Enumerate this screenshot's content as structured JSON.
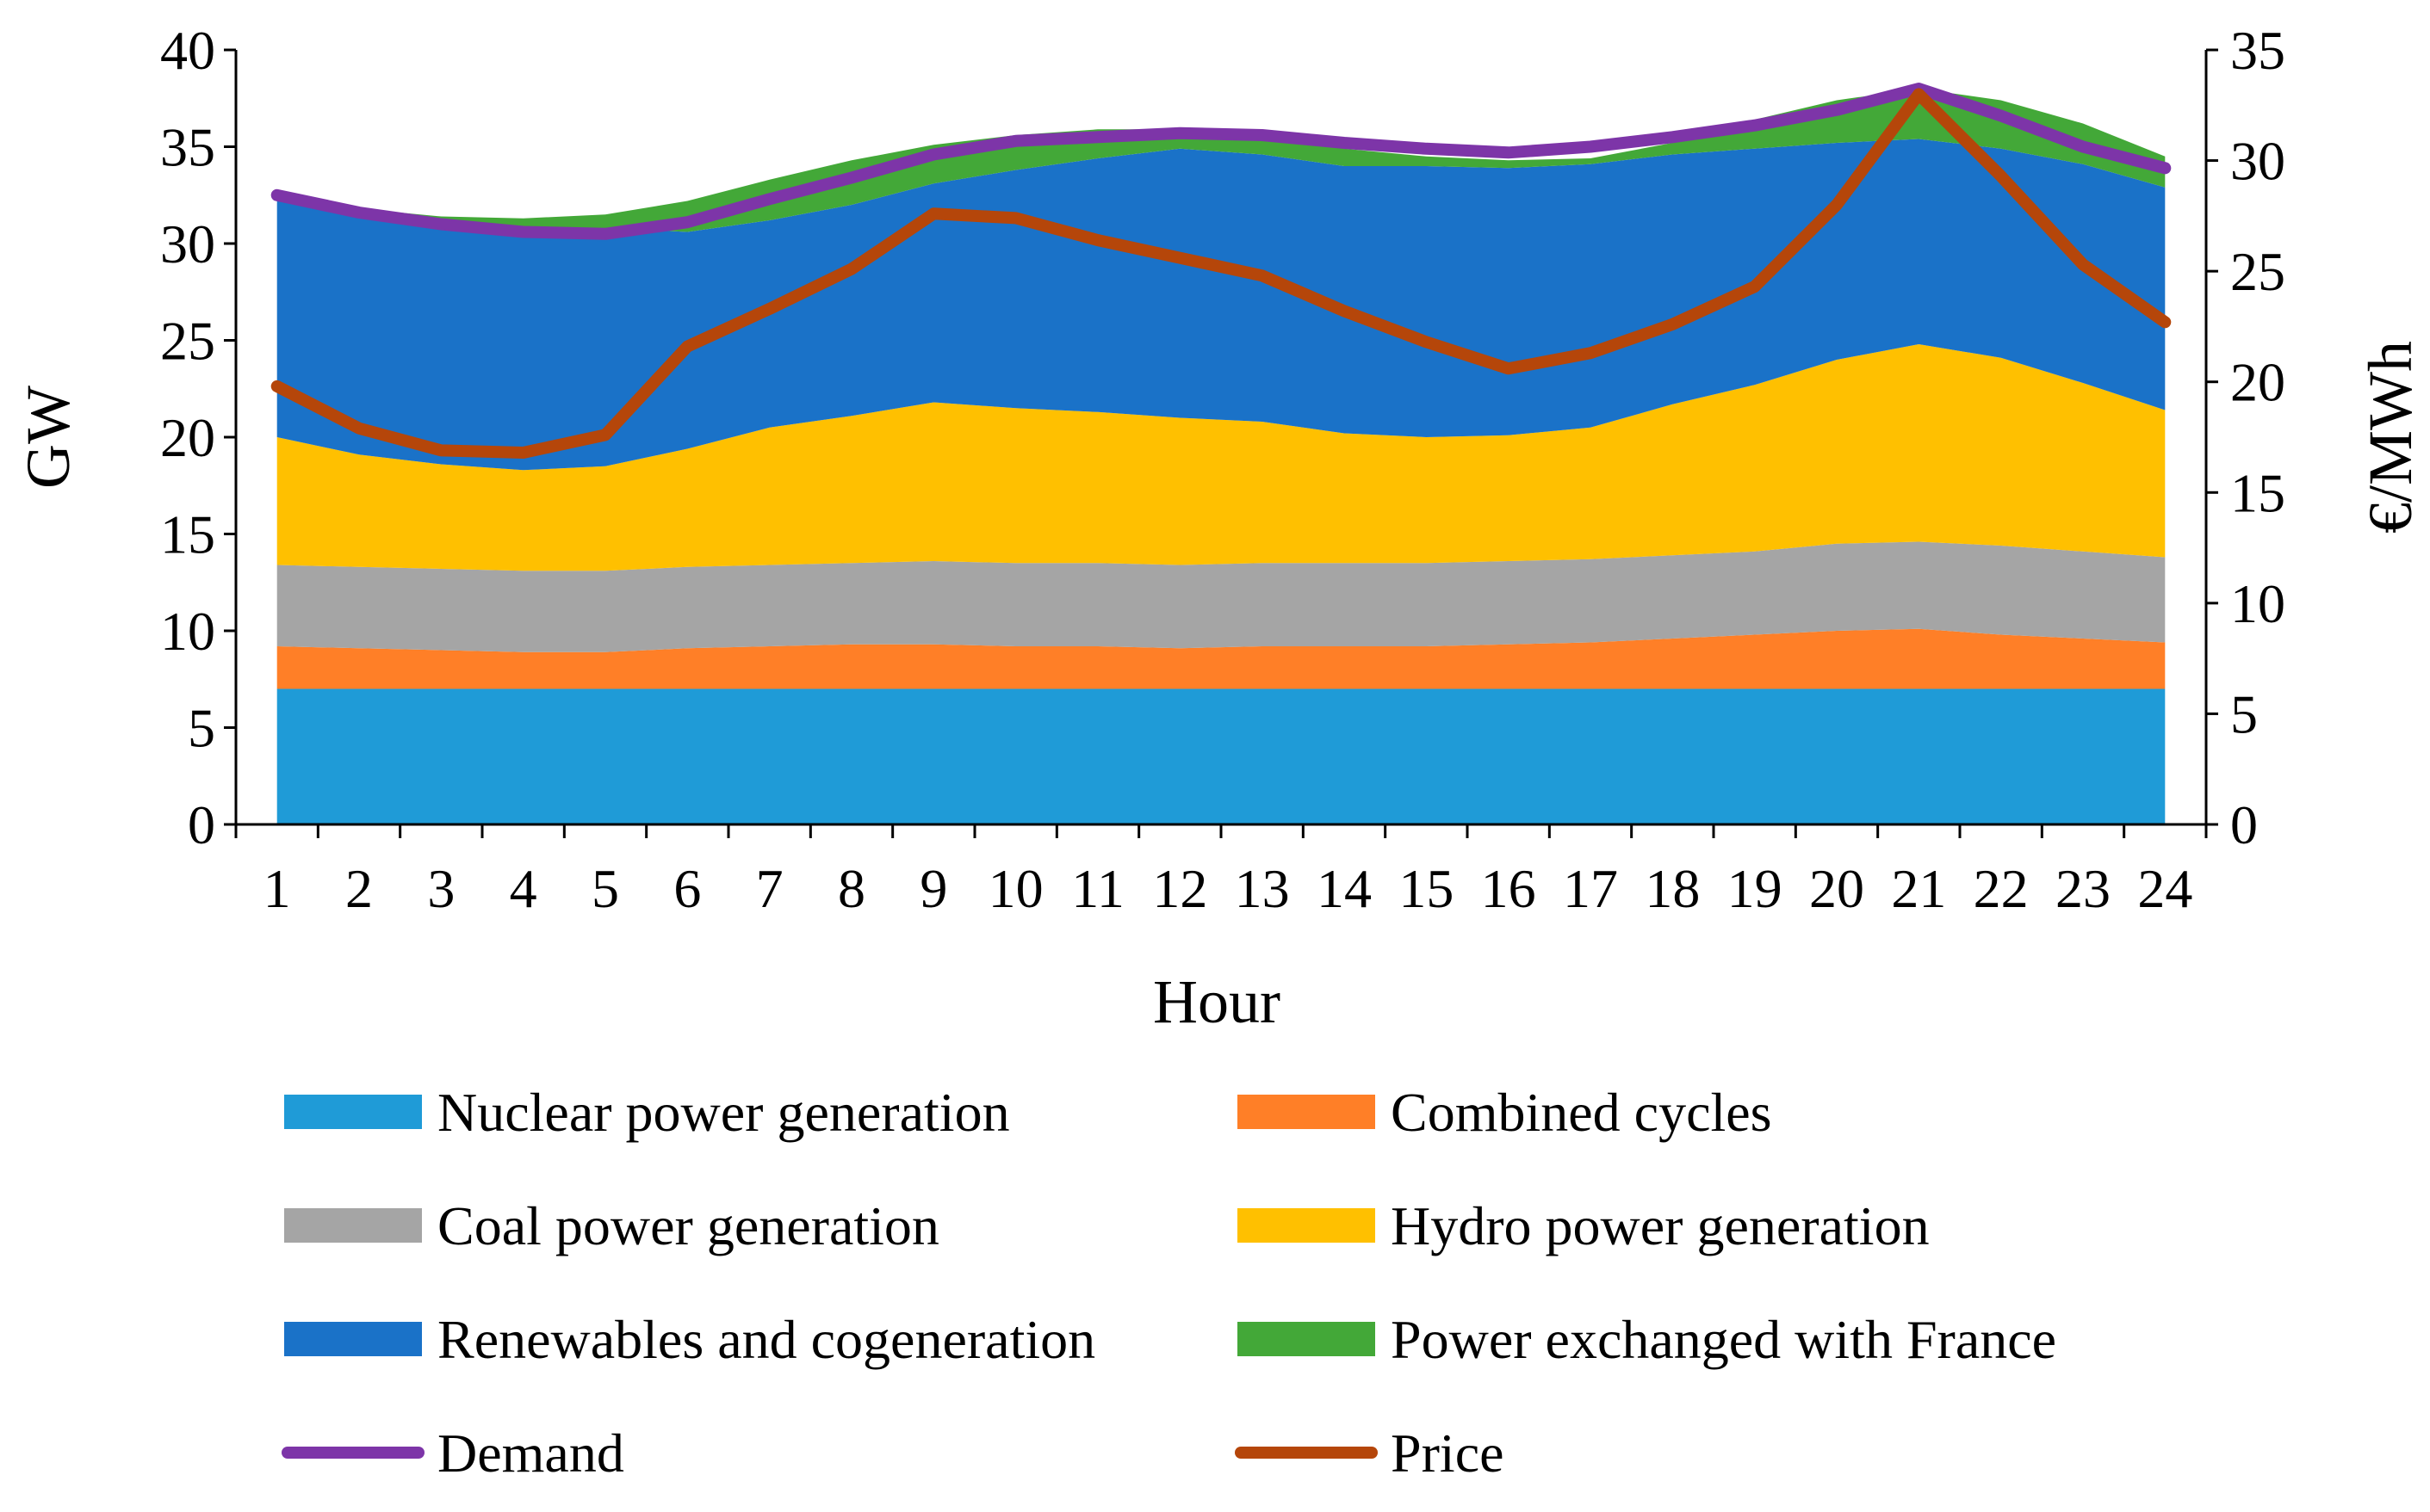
{
  "chart_data": {
    "type": "area",
    "stacked": true,
    "categories": [
      "1",
      "2",
      "3",
      "4",
      "5",
      "6",
      "7",
      "8",
      "9",
      "10",
      "11",
      "12",
      "13",
      "14",
      "15",
      "16",
      "17",
      "18",
      "19",
      "20",
      "21",
      "22",
      "23",
      "24"
    ],
    "xlabel": "Hour",
    "ylabel": "GW",
    "y2label": "€/MWh",
    "ylim": [
      0,
      40
    ],
    "yticks": [
      "0",
      "5",
      "10",
      "15",
      "20",
      "25",
      "30",
      "35",
      "40"
    ],
    "y2lim": [
      0,
      35
    ],
    "y2ticks": [
      "0",
      "5",
      "10",
      "15",
      "20",
      "25",
      "30",
      "35"
    ],
    "grid": false,
    "legend_position": "bottom",
    "series": [
      {
        "name": "Nuclear power generation",
        "kind": "area",
        "axis": "left",
        "color": "#1F9BD7",
        "values": [
          7.0,
          7.0,
          7.0,
          7.0,
          7.0,
          7.0,
          7.0,
          7.0,
          7.0,
          7.0,
          7.0,
          7.0,
          7.0,
          7.0,
          7.0,
          7.0,
          7.0,
          7.0,
          7.0,
          7.0,
          7.0,
          7.0,
          7.0,
          7.0
        ]
      },
      {
        "name": "Combined cycles",
        "kind": "area",
        "axis": "left",
        "color": "#FF7F27",
        "values": [
          2.2,
          2.1,
          2.0,
          1.9,
          1.9,
          2.1,
          2.2,
          2.3,
          2.3,
          2.2,
          2.2,
          2.1,
          2.2,
          2.2,
          2.2,
          2.3,
          2.4,
          2.6,
          2.8,
          3.0,
          3.1,
          2.8,
          2.6,
          2.4
        ]
      },
      {
        "name": "Coal power generation",
        "kind": "area",
        "axis": "left",
        "color": "#A5A5A5",
        "values": [
          4.2,
          4.2,
          4.2,
          4.2,
          4.2,
          4.2,
          4.2,
          4.2,
          4.3,
          4.3,
          4.3,
          4.3,
          4.3,
          4.3,
          4.3,
          4.3,
          4.3,
          4.3,
          4.3,
          4.5,
          4.5,
          4.6,
          4.5,
          4.4
        ]
      },
      {
        "name": "Hydro power generation",
        "kind": "area",
        "axis": "left",
        "color": "#FFC000",
        "values": [
          6.6,
          5.8,
          5.4,
          5.2,
          5.4,
          6.1,
          7.1,
          7.6,
          8.2,
          8.0,
          7.8,
          7.6,
          7.3,
          6.7,
          6.5,
          6.5,
          6.8,
          7.8,
          8.6,
          9.5,
          10.2,
          9.7,
          8.7,
          7.6
        ]
      },
      {
        "name": "Renewables and cogeneration",
        "kind": "area",
        "axis": "left",
        "color": "#1A72C8",
        "values": [
          12.2,
          12.4,
          12.3,
          12.4,
          12.3,
          11.2,
          10.7,
          10.9,
          11.3,
          12.3,
          13.1,
          13.9,
          13.8,
          13.8,
          14.0,
          13.8,
          13.6,
          12.9,
          12.2,
          11.2,
          10.6,
          10.8,
          11.3,
          11.5
        ]
      },
      {
        "name": "Power exchanged with France",
        "kind": "area",
        "axis": "left",
        "color": "#43A838",
        "values": [
          0.3,
          0.3,
          0.5,
          0.6,
          0.7,
          1.6,
          2.1,
          2.3,
          2.0,
          1.8,
          1.5,
          1.0,
          0.9,
          0.9,
          0.5,
          0.4,
          0.3,
          0.6,
          1.5,
          2.2,
          2.6,
          2.5,
          2.1,
          1.6
        ]
      },
      {
        "name": "Demand",
        "kind": "line",
        "axis": "left",
        "color": "#7D35A8",
        "values": [
          32.5,
          31.6,
          31.0,
          30.6,
          30.5,
          31.1,
          32.3,
          33.4,
          34.6,
          35.3,
          35.5,
          35.7,
          35.6,
          35.2,
          34.9,
          34.7,
          35.0,
          35.5,
          36.1,
          36.9,
          38.0,
          36.6,
          35.0,
          33.9
        ]
      },
      {
        "name": "Price",
        "kind": "line",
        "axis": "right",
        "color": "#B5460A",
        "values": [
          19.8,
          17.9,
          16.9,
          16.8,
          17.6,
          21.6,
          23.3,
          25.1,
          27.6,
          27.4,
          26.4,
          25.6,
          24.8,
          23.2,
          21.8,
          20.6,
          21.3,
          22.6,
          24.3,
          28.0,
          33.0,
          29.3,
          25.3,
          22.7
        ]
      }
    ]
  }
}
